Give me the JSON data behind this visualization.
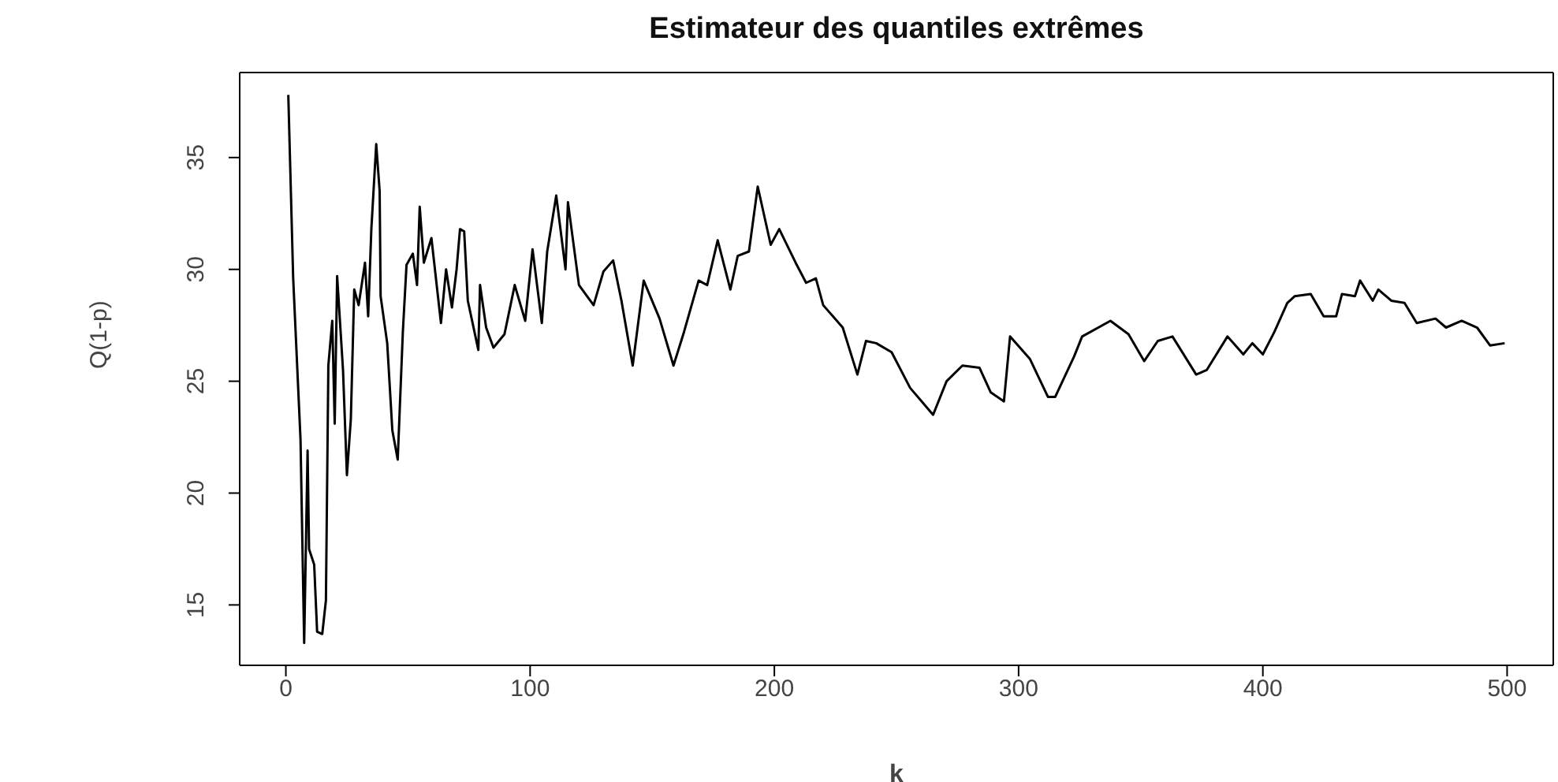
{
  "chart_data": {
    "type": "line",
    "title": "Estimateur des quantiles extrêmes",
    "xlabel": "k",
    "ylabel": "Q(1-p)",
    "x": [
      1,
      3,
      6,
      7.5,
      8.9,
      9.5,
      11.6,
      12.8,
      14.9,
      16.4,
      17.4,
      19,
      20,
      21,
      23.4,
      25,
      26.6,
      28,
      29.8,
      32.4,
      33.7,
      35,
      37,
      38.4,
      38.8,
      41.5,
      43.6,
      45.8,
      47.9,
      49.4,
      52,
      53.7,
      54.8,
      56.5,
      59.6,
      63.5,
      65.6,
      68,
      69.9,
      71.3,
      73,
      74.5,
      78.8,
      79.5,
      82,
      85,
      89.5,
      93.7,
      98,
      101,
      104.8,
      107,
      110.7,
      114.5,
      115.5,
      120,
      126,
      130,
      134,
      137.4,
      142,
      146.5,
      153,
      158.7,
      163,
      169,
      172.5,
      176.8,
      182,
      185,
      189.6,
      193.2,
      198.5,
      202,
      208.7,
      213,
      217,
      220,
      228,
      234,
      237.5,
      241.7,
      248,
      255.6,
      265,
      270.5,
      277,
      284,
      288.6,
      294,
      296.5,
      304.6,
      312,
      315,
      322.7,
      326,
      337.6,
      345,
      351.4,
      357,
      363,
      372.7,
      377,
      385.5,
      392,
      395.7,
      400,
      404.7,
      410,
      413,
      419.6,
      424.9,
      430,
      432.4,
      437.7,
      439.8,
      445,
      447.3,
      452.6,
      458,
      463,
      470.7,
      475,
      481.4,
      487.7,
      493,
      499
    ],
    "series": [
      {
        "color": "#000000",
        "values": [
          37.8,
          29.6,
          22.4,
          13.3,
          21.9,
          17.5,
          16.8,
          13.8,
          13.7,
          15.2,
          25.7,
          27.7,
          23.1,
          29.7,
          25.5,
          20.8,
          23.3,
          29.1,
          28.4,
          30.3,
          27.9,
          31.8,
          35.6,
          33.5,
          28.8,
          26.7,
          22.8,
          21.5,
          27.2,
          30.2,
          30.7,
          29.3,
          32.8,
          30.3,
          31.4,
          27.6,
          30.0,
          28.3,
          30.0,
          31.8,
          31.7,
          28.6,
          26.4,
          29.3,
          27.4,
          26.5,
          27.1,
          29.3,
          27.7,
          30.9,
          27.6,
          30.8,
          33.3,
          30.0,
          33.0,
          29.3,
          28.4,
          29.9,
          30.4,
          28.6,
          25.7,
          29.5,
          27.8,
          25.7,
          27.2,
          29.5,
          29.3,
          31.3,
          29.1,
          30.6,
          30.8,
          33.7,
          31.1,
          31.8,
          30.3,
          29.4,
          29.6,
          28.4,
          27.4,
          25.3,
          26.8,
          26.7,
          26.3,
          24.7,
          23.5,
          25.0,
          25.7,
          25.6,
          24.5,
          24.1,
          27.0,
          26.0,
          24.3,
          24.3,
          26.1,
          27.0,
          27.7,
          27.1,
          25.9,
          26.8,
          27.0,
          25.3,
          25.5,
          27.0,
          26.2,
          26.7,
          26.2,
          27.2,
          28.5,
          28.8,
          28.9,
          27.9,
          27.9,
          28.9,
          28.8,
          29.5,
          28.6,
          29.1,
          28.6,
          28.5,
          27.6,
          27.8,
          27.4,
          27.7,
          27.4,
          26.6,
          26.7
        ]
      }
    ],
    "xlim": [
      -18.9,
      518.9
    ],
    "xticks": [
      0,
      100,
      200,
      300,
      400,
      500
    ],
    "ylim": [
      12.3,
      38.8
    ],
    "yticks": [
      15,
      20,
      25,
      30,
      35
    ],
    "grid": false,
    "legend": false,
    "marker": "none",
    "line_style": "solid"
  }
}
